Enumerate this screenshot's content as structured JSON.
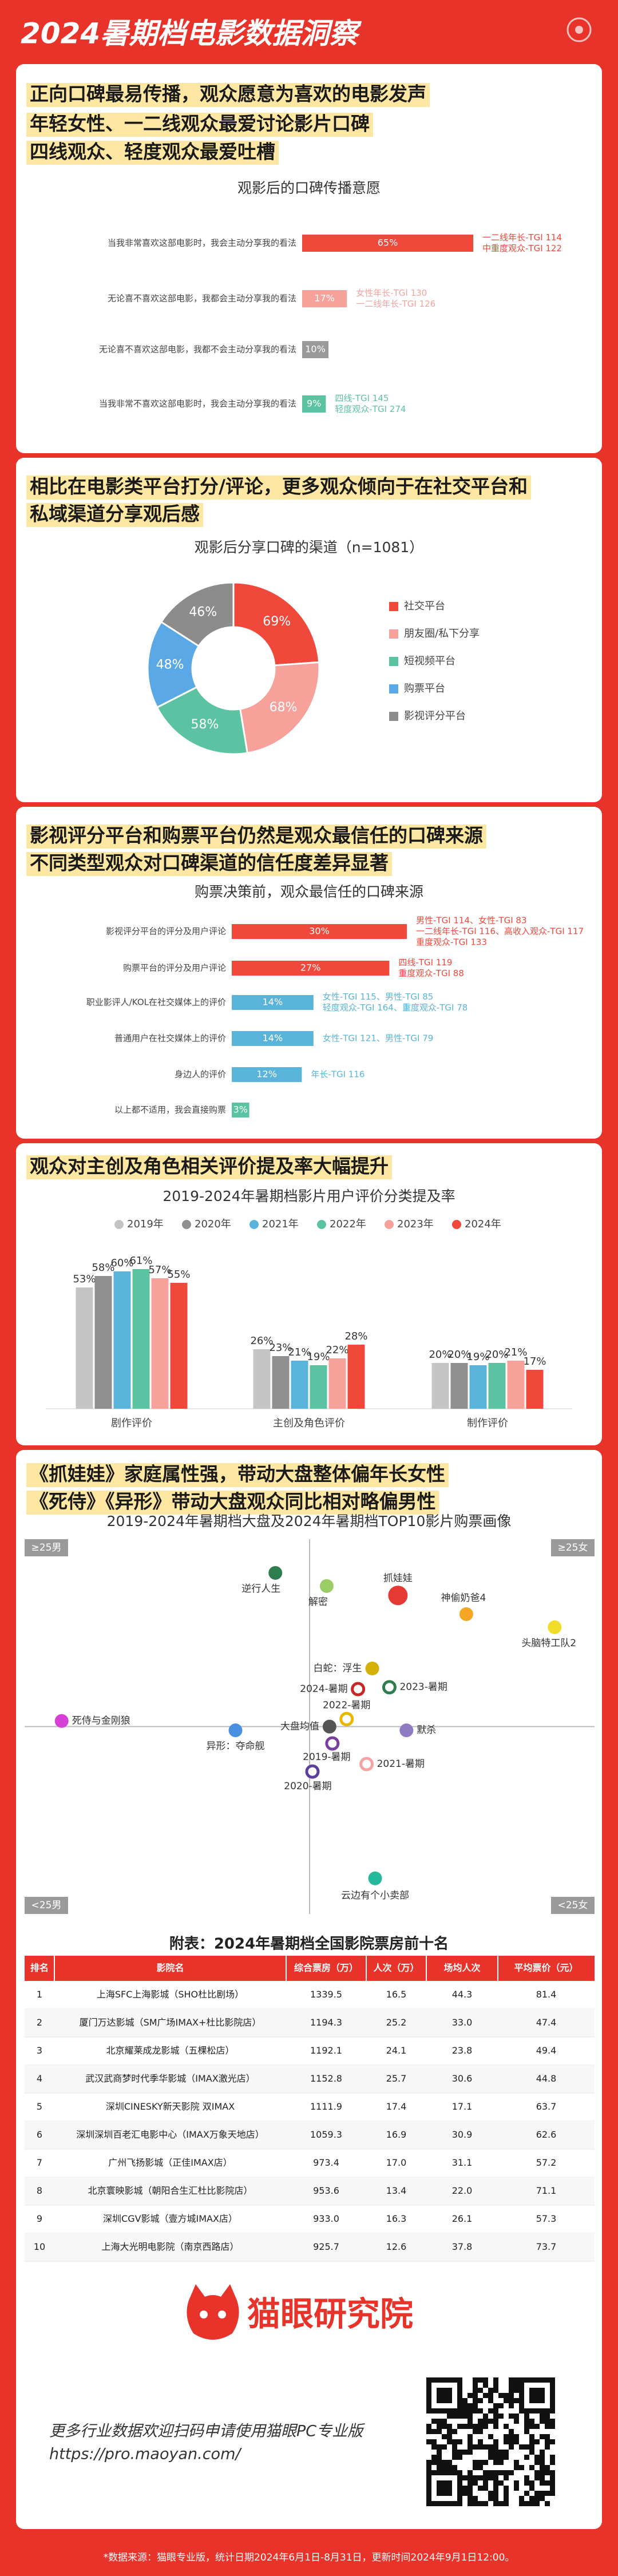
{
  "header": {
    "title": "2024暑期档电影数据洞察"
  },
  "headlines": [
    [
      "正向口碑最易传播，观众愿意为喜欢的电影发声",
      "年轻女性、一二线观众最爱讨论影片口碑",
      "四线观众、轻度观众最爱吐槽"
    ],
    [
      "相比在电影类平台打分/评论，更多观众倾向于在社交平台和",
      "私域渠道分享观后感"
    ],
    [
      "影视评分平台和购票平台仍然是观众最信任的口碑来源",
      "不同类型观众对口碑渠道的信任度差异显著"
    ],
    [
      "观众对主创及角色相关评价提及率大幅提升"
    ],
    [
      "《抓娃娃》家庭属性强，带动大盘整体偏年长女性",
      "《死侍》《异形》带动大盘观众同比相对略偏男性"
    ]
  ],
  "chart_data": [
    {
      "type": "bar",
      "orientation": "horizontal",
      "title": "观影后的口碑传播意愿",
      "categories": [
        "当我非常喜欢这部电影时，我会主动分享我的看法",
        "无论喜不喜欢这部电影，我都会主动分享我的看法",
        "无论喜不喜欢这部电影，我都不会主动分享我的看法",
        "当我非常不喜欢这部电影时，我会主动分享我的看法"
      ],
      "values": [
        65,
        17,
        10,
        9
      ],
      "value_labels": [
        "65%",
        "17%",
        "10%",
        "9%"
      ],
      "colors": [
        "#f0483b",
        "#f7a19b",
        "#9a9a9a",
        "#5cc3a2"
      ],
      "annotations": [
        [
          "一二线年长-TGI 114",
          "中重度观众-TGI 122"
        ],
        [
          "女性年长-TGI 130",
          "一二线年长-TGI 126"
        ],
        [],
        [
          "四线-TGI 145",
          "轻度观众-TGI 274"
        ]
      ]
    },
    {
      "type": "donut",
      "title": "观影后分享口碑的渠道（n=1081）",
      "categories": [
        "社交平台",
        "朋友圈/私下分享",
        "短视频平台",
        "购票平台",
        "影视评分平台"
      ],
      "values": [
        69,
        68,
        58,
        48,
        46
      ],
      "value_labels": [
        "69%",
        "68%",
        "58%",
        "48%",
        "46%"
      ],
      "colors": [
        "#f0483b",
        "#f7a19b",
        "#5cc3a2",
        "#5aa9e6",
        "#8c8c8c"
      ]
    },
    {
      "type": "bar",
      "orientation": "horizontal",
      "title": "购票决策前，观众最信任的口碑来源",
      "categories": [
        "影视评分平台的评分及用户评论",
        "购票平台的评分及用户评论",
        "职业影评人/KOL在社交媒体上的评价",
        "普通用户在社交媒体上的评价",
        "身边人的评价",
        "以上都不适用，我会直接购票"
      ],
      "values": [
        30,
        27,
        14,
        14,
        12,
        3
      ],
      "value_labels": [
        "30%",
        "27%",
        "14%",
        "14%",
        "12%",
        "3%"
      ],
      "colors": [
        "#f0483b",
        "#f0483b",
        "#5ab4d9",
        "#5ab4d9",
        "#5ab4d9",
        "#5cc3a2"
      ],
      "annotations": [
        [
          "男性-TGI 114、女性-TGI 83",
          "一二线年长-TGI 116、高收入观众-TGI 117",
          "重度观众-TGI 133"
        ],
        [
          "四线-TGI 119",
          "重度观众-TGI 88"
        ],
        [
          "女性-TGI 115、男性-TGI 85",
          "轻度观众-TGI 164、重度观众-TGI 78"
        ],
        [
          "女性-TGI 121、男性-TGI 79"
        ],
        [
          "年长-TGI 116"
        ],
        []
      ]
    },
    {
      "type": "bar",
      "orientation": "vertical",
      "title": "2019-2024年暑期档影片用户评价分类提及率",
      "categories": [
        "剧作评价",
        "主创及角色评价",
        "制作评价"
      ],
      "series": [
        {
          "name": "2019年",
          "color": "#c4c4c4",
          "values": [
            53,
            26,
            20
          ],
          "value_labels": [
            "53%",
            "26%",
            "20%"
          ]
        },
        {
          "name": "2020年",
          "color": "#8f8f8f",
          "values": [
            58,
            23,
            20
          ],
          "value_labels": [
            "58%",
            "23%",
            "20%"
          ]
        },
        {
          "name": "2021年",
          "color": "#5ab4d9",
          "values": [
            60,
            21,
            19
          ],
          "value_labels": [
            "60%",
            "21%",
            "19%"
          ]
        },
        {
          "name": "2022年",
          "color": "#5cc3a2",
          "values": [
            61,
            19,
            20
          ],
          "value_labels": [
            "61%",
            "19%",
            "20%"
          ]
        },
        {
          "name": "2023年",
          "color": "#f7a19b",
          "values": [
            57,
            22,
            21
          ],
          "value_labels": [
            "57%",
            "22%",
            "21%"
          ]
        },
        {
          "name": "2024年",
          "color": "#f0483b",
          "values": [
            55,
            28,
            17
          ],
          "value_labels": [
            "55%",
            "28%",
            "17%"
          ]
        }
      ]
    },
    {
      "type": "scatter",
      "title": "2019-2024年暑期档大盘及2024年暑期档TOP10影片购票画像",
      "xlim": [
        -100,
        100
      ],
      "ylim": [
        -100,
        100
      ],
      "quadrant_labels": [
        "≥25男",
        "≥25女",
        "<25男",
        "<25女"
      ],
      "points": [
        {
          "label": "逆行人生",
          "x": -12,
          "y": 82,
          "color": "#2e7d4f"
        },
        {
          "label": "解密",
          "x": 6,
          "y": 75,
          "color": "#9ccc65"
        },
        {
          "label": "抓娃娃",
          "x": 31,
          "y": 70,
          "color": "#e53935"
        },
        {
          "label": "神偷奶爸4",
          "x": 55,
          "y": 60,
          "color": "#f5a623"
        },
        {
          "label": "头脑特工队2",
          "x": 86,
          "y": 53,
          "color": "#f2dc2a"
        },
        {
          "label": "白蛇：浮生",
          "x": 22,
          "y": 31,
          "color": "#d4b106"
        },
        {
          "label": "2023-暑期",
          "x": 28,
          "y": 21,
          "color": "#2e7d4f",
          "hollow": true
        },
        {
          "label": "2024-暑期",
          "x": 17,
          "y": 20,
          "color": "#c62828",
          "hollow": true
        },
        {
          "label": "2022-暑期",
          "x": 13,
          "y": 4,
          "color": "#e8b800",
          "hollow": true
        },
        {
          "label": "大盘均值",
          "x": 7,
          "y": 0,
          "color": "#555555"
        },
        {
          "label": "默杀",
          "x": 34,
          "y": -2,
          "color": "#8e7cc3"
        },
        {
          "label": "死侍与金刚狼",
          "x": -87,
          "y": 3,
          "color": "#d63fd6"
        },
        {
          "label": "异形：夺命舰",
          "x": -26,
          "y": -2,
          "color": "#4a90e2"
        },
        {
          "label": "2019-暑期",
          "x": 8,
          "y": -9,
          "color": "#7b3fa0",
          "hollow": true
        },
        {
          "label": "2021-暑期",
          "x": 20,
          "y": -20,
          "color": "#f4a4a4",
          "hollow": true
        },
        {
          "label": "2020-暑期",
          "x": 1,
          "y": -24,
          "color": "#5a3fa0",
          "hollow": true
        },
        {
          "label": "云边有个小卖部",
          "x": 23,
          "y": -81,
          "color": "#26b89a"
        }
      ]
    }
  ],
  "table": {
    "title": "附表：2024年暑期档全国影院票房前十名",
    "columns": [
      "排名",
      "影院名",
      "综合票房（万）",
      "人次（万）",
      "场均人次",
      "平均票价（元）"
    ],
    "rows": [
      [
        "1",
        "上海SFC上海影城（SHO杜比剧场）",
        "1339.5",
        "16.5",
        "44.3",
        "81.4"
      ],
      [
        "2",
        "厦门万达影城（SM广场IMAX+杜比影院店）",
        "1194.3",
        "25.2",
        "33.0",
        "47.4"
      ],
      [
        "3",
        "北京耀莱成龙影城（五棵松店）",
        "1192.1",
        "24.1",
        "23.8",
        "49.4"
      ],
      [
        "4",
        "武汉武商梦时代季华影城（IMAX激光店）",
        "1152.8",
        "25.7",
        "30.6",
        "44.8"
      ],
      [
        "5",
        "深圳CINESKY新天影院 双IMAX",
        "1111.9",
        "17.4",
        "17.1",
        "63.7"
      ],
      [
        "6",
        "深圳深圳百老汇电影中心（IMAX万象天地店）",
        "1059.3",
        "16.9",
        "30.9",
        "62.6"
      ],
      [
        "7",
        "广州飞扬影城（正佳IMAX店）",
        "973.4",
        "17.0",
        "31.1",
        "57.2"
      ],
      [
        "8",
        "北京寰映影城（朝阳合生汇杜比影院店）",
        "953.6",
        "13.4",
        "22.0",
        "71.1"
      ],
      [
        "9",
        "深圳CGV影城（壹方城IMAX店）",
        "933.0",
        "16.3",
        "26.1",
        "57.3"
      ],
      [
        "10",
        "上海大光明电影院（南京西路店）",
        "925.7",
        "12.6",
        "37.8",
        "73.7"
      ]
    ]
  },
  "footer": {
    "brand": "猫眼研究院",
    "lines": [
      "更多行业数据欢迎扫码申请使用猫眼PC专业版",
      "https://pro.maoyan.com/"
    ],
    "note": "*数据来源：猫眼专业版，统计日期2024年6月1日-8月31日，更新时间2024年9月1日12:00。"
  }
}
